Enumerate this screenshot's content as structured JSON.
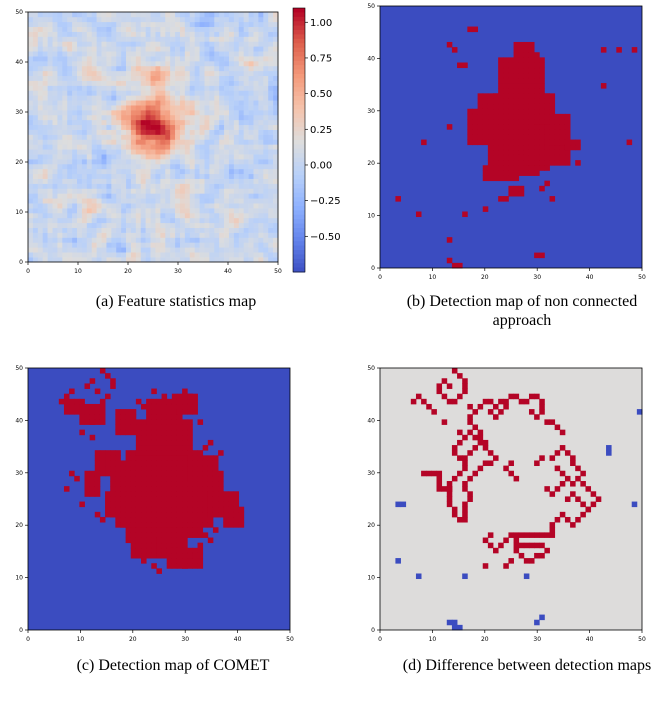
{
  "captions": {
    "a": "(a) Feature statistics map",
    "b": "(b) Detection map of non connected approach",
    "c": "(c) Detection map of COMET",
    "d": "(d) Difference between detection maps"
  },
  "chart_data": [
    {
      "id": "a",
      "type": "heatmap",
      "title": "",
      "xlim": [
        0,
        50
      ],
      "ylim": [
        0,
        50
      ],
      "xticks": [
        "0",
        "10",
        "20",
        "30",
        "40",
        "50"
      ],
      "yticks": [
        "0",
        "10",
        "20",
        "30",
        "40",
        "50"
      ],
      "colormap": "coolwarm",
      "colorbar": {
        "min": -0.75,
        "max": 1.1,
        "ticks": [
          "1.00",
          "0.75",
          "0.50",
          "0.25",
          "0.00",
          "−0.25",
          "−0.50"
        ],
        "tick_values": [
          1.0,
          0.75,
          0.5,
          0.25,
          0.0,
          -0.25,
          -0.5
        ]
      },
      "blob_center": [
        25,
        27
      ],
      "note_values": "noisy random field with a strong positive blob around (25,27)"
    },
    {
      "id": "b",
      "type": "heatmap",
      "xlim": [
        0,
        50
      ],
      "ylim": [
        0,
        50
      ],
      "xticks": [
        "0",
        "10",
        "20",
        "30",
        "40",
        "50"
      ],
      "yticks": [
        "0",
        "10",
        "20",
        "30",
        "40",
        "50"
      ],
      "background_color": "#3b4cc0",
      "detected_color": "#b40426",
      "detected_blocks": [
        [
          21,
          31,
          20,
          32
        ],
        [
          22,
          32,
          19,
          33
        ],
        [
          23,
          31,
          33,
          40
        ],
        [
          26,
          29,
          40,
          43
        ],
        [
          19,
          33,
          25,
          33
        ],
        [
          32,
          36,
          21,
          29
        ],
        [
          17,
          20,
          24,
          30
        ],
        [
          20,
          22,
          17,
          19
        ],
        [
          23,
          26,
          17,
          19
        ],
        [
          26,
          30,
          18,
          21
        ],
        [
          28,
          31,
          20,
          22
        ],
        [
          30,
          32,
          28,
          31
        ],
        [
          32,
          35,
          20,
          22
        ],
        [
          33,
          35,
          24,
          26
        ],
        [
          36,
          38,
          23,
          24
        ]
      ],
      "detected_points": [
        [
          13,
          43
        ],
        [
          14,
          42
        ],
        [
          15,
          39
        ],
        [
          16,
          39
        ],
        [
          17,
          46
        ],
        [
          18,
          46
        ],
        [
          30,
          41
        ],
        [
          43,
          42
        ],
        [
          46,
          42
        ],
        [
          8,
          24
        ],
        [
          13,
          27
        ],
        [
          36,
          20
        ],
        [
          38,
          20
        ],
        [
          43,
          35
        ],
        [
          49,
          42
        ],
        [
          48,
          24
        ],
        [
          31,
          15
        ],
        [
          32,
          16
        ],
        [
          25,
          14
        ],
        [
          26,
          14
        ],
        [
          27,
          14
        ],
        [
          25,
          15
        ],
        [
          26,
          15
        ],
        [
          27,
          15
        ],
        [
          23,
          13
        ],
        [
          24,
          13
        ],
        [
          33,
          13
        ],
        [
          16,
          10
        ],
        [
          13,
          5
        ],
        [
          3,
          13
        ],
        [
          7,
          10
        ],
        [
          20,
          11
        ],
        [
          30,
          2
        ],
        [
          31,
          2
        ],
        [
          13,
          1
        ],
        [
          14,
          0
        ],
        [
          15,
          0
        ]
      ]
    },
    {
      "id": "c",
      "type": "heatmap",
      "xlim": [
        0,
        50
      ],
      "ylim": [
        0,
        50
      ],
      "xticks": [
        "0",
        "10",
        "20",
        "30",
        "40",
        "50"
      ],
      "yticks": [
        "0",
        "10",
        "20",
        "30",
        "40",
        "50"
      ],
      "background_color": "#3b4cc0",
      "detected_color": "#b40426",
      "detected_blocks": [
        [
          19,
          33,
          18,
          34
        ],
        [
          17,
          35,
          20,
          32
        ],
        [
          16,
          37,
          22,
          30
        ],
        [
          21,
          31,
          34,
          40
        ],
        [
          23,
          29,
          40,
          44
        ],
        [
          13,
          17,
          30,
          34
        ],
        [
          11,
          13,
          26,
          30
        ],
        [
          35,
          40,
          22,
          26
        ],
        [
          38,
          41,
          20,
          23
        ],
        [
          20,
          25,
          14,
          18
        ],
        [
          25,
          30,
          14,
          17
        ],
        [
          27,
          33,
          12,
          15
        ],
        [
          15,
          19,
          22,
          26
        ],
        [
          31,
          36,
          29,
          33
        ],
        [
          28,
          32,
          42,
          45
        ],
        [
          17,
          20,
          38,
          42
        ],
        [
          10,
          14,
          40,
          43
        ],
        [
          7,
          9,
          42,
          44
        ]
      ],
      "detected_points": [
        [
          14,
          50
        ],
        [
          15,
          49
        ],
        [
          16,
          48
        ],
        [
          16,
          47
        ],
        [
          15,
          45
        ],
        [
          14,
          44
        ],
        [
          13,
          46
        ],
        [
          11,
          47
        ],
        [
          12,
          48
        ],
        [
          6,
          44
        ],
        [
          7,
          45
        ],
        [
          8,
          46
        ],
        [
          9,
          43
        ],
        [
          10,
          38
        ],
        [
          12,
          37
        ],
        [
          8,
          30
        ],
        [
          9,
          29
        ],
        [
          7,
          27
        ],
        [
          10,
          24
        ],
        [
          13,
          22
        ],
        [
          14,
          21
        ],
        [
          18,
          20
        ],
        [
          19,
          17
        ],
        [
          22,
          13
        ],
        [
          24,
          12
        ],
        [
          25,
          11
        ],
        [
          30,
          12
        ],
        [
          32,
          14
        ],
        [
          33,
          16
        ],
        [
          34,
          18
        ],
        [
          35,
          17
        ],
        [
          36,
          19
        ],
        [
          37,
          34
        ],
        [
          34,
          35
        ],
        [
          35,
          36
        ],
        [
          31,
          45
        ],
        [
          30,
          46
        ],
        [
          33,
          40
        ],
        [
          29,
          42
        ],
        [
          26,
          45
        ],
        [
          24,
          46
        ],
        [
          22,
          43
        ],
        [
          21,
          44
        ],
        [
          12,
          40
        ],
        [
          10,
          44
        ]
      ]
    },
    {
      "id": "d",
      "type": "heatmap",
      "xlim": [
        0,
        50
      ],
      "ylim": [
        0,
        50
      ],
      "xticks": [
        "0",
        "10",
        "20",
        "30",
        "40",
        "50"
      ],
      "yticks": [
        "0",
        "10",
        "20",
        "30",
        "40",
        "50"
      ],
      "background_color": "#dddcdb",
      "added_color": "#b40426",
      "removed_color": "#3b4cc0",
      "added_points": [
        [
          14,
          50
        ],
        [
          15,
          49
        ],
        [
          16,
          48
        ],
        [
          16,
          47
        ],
        [
          16,
          46
        ],
        [
          15,
          45
        ],
        [
          14,
          44
        ],
        [
          13,
          44
        ],
        [
          12,
          45
        ],
        [
          11,
          46
        ],
        [
          11,
          47
        ],
        [
          12,
          48
        ],
        [
          13,
          47
        ],
        [
          17,
          43
        ],
        [
          18,
          42
        ],
        [
          19,
          43
        ],
        [
          20,
          44
        ],
        [
          21,
          44
        ],
        [
          22,
          43
        ],
        [
          23,
          44
        ],
        [
          24,
          44
        ],
        [
          25,
          45
        ],
        [
          26,
          45
        ],
        [
          27,
          44
        ],
        [
          28,
          44
        ],
        [
          29,
          45
        ],
        [
          30,
          45
        ],
        [
          31,
          44
        ],
        [
          31,
          43
        ],
        [
          31,
          42
        ],
        [
          30,
          41
        ],
        [
          29,
          42
        ],
        [
          33,
          40
        ],
        [
          32,
          40
        ],
        [
          34,
          39
        ],
        [
          35,
          38
        ],
        [
          17,
          41
        ],
        [
          17,
          40
        ],
        [
          18,
          39
        ],
        [
          19,
          38
        ],
        [
          19,
          37
        ],
        [
          20,
          36
        ],
        [
          20,
          35
        ],
        [
          21,
          34
        ],
        [
          22,
          33
        ],
        [
          21,
          32
        ],
        [
          20,
          32
        ],
        [
          19,
          31
        ],
        [
          18,
          30
        ],
        [
          17,
          29
        ],
        [
          16,
          28
        ],
        [
          16,
          27
        ],
        [
          17,
          26
        ],
        [
          17,
          25
        ],
        [
          16,
          24
        ],
        [
          16,
          23
        ],
        [
          16,
          22
        ],
        [
          16,
          21
        ],
        [
          15,
          21
        ],
        [
          14,
          22
        ],
        [
          14,
          23
        ],
        [
          13,
          24
        ],
        [
          13,
          25
        ],
        [
          13,
          26
        ],
        [
          13,
          27
        ],
        [
          13,
          28
        ],
        [
          14,
          29
        ],
        [
          15,
          30
        ],
        [
          16,
          31
        ],
        [
          16,
          32
        ],
        [
          15,
          33
        ],
        [
          14,
          34
        ],
        [
          14,
          35
        ],
        [
          15,
          36
        ],
        [
          16,
          37
        ],
        [
          17,
          38
        ],
        [
          18,
          37
        ],
        [
          19,
          36
        ],
        [
          18,
          35
        ],
        [
          17,
          34
        ],
        [
          16,
          33
        ],
        [
          8,
          30
        ],
        [
          9,
          30
        ],
        [
          10,
          30
        ],
        [
          11,
          30
        ],
        [
          11,
          29
        ],
        [
          11,
          28
        ],
        [
          11,
          27
        ],
        [
          12,
          27
        ],
        [
          13,
          27
        ],
        [
          33,
          33
        ],
        [
          34,
          34
        ],
        [
          35,
          35
        ],
        [
          36,
          34
        ],
        [
          37,
          33
        ],
        [
          37,
          32
        ],
        [
          38,
          31
        ],
        [
          39,
          30
        ],
        [
          38,
          29
        ],
        [
          39,
          28
        ],
        [
          40,
          27
        ],
        [
          41,
          26
        ],
        [
          42,
          25
        ],
        [
          41,
          24
        ],
        [
          40,
          23
        ],
        [
          39,
          22
        ],
        [
          38,
          21
        ],
        [
          37,
          20
        ],
        [
          36,
          21
        ],
        [
          35,
          22
        ],
        [
          34,
          21
        ],
        [
          33,
          20
        ],
        [
          33,
          19
        ],
        [
          33,
          18
        ],
        [
          32,
          18
        ],
        [
          31,
          18
        ],
        [
          30,
          18
        ],
        [
          29,
          18
        ],
        [
          28,
          18
        ],
        [
          27,
          18
        ],
        [
          26,
          18
        ],
        [
          25,
          18
        ],
        [
          24,
          17
        ],
        [
          23,
          16
        ],
        [
          22,
          15
        ],
        [
          21,
          16
        ],
        [
          20,
          17
        ],
        [
          21,
          18
        ],
        [
          26,
          17
        ],
        [
          26,
          16
        ],
        [
          26,
          15
        ],
        [
          27,
          14
        ],
        [
          28,
          13
        ],
        [
          29,
          13
        ],
        [
          30,
          14
        ],
        [
          31,
          14
        ],
        [
          32,
          15
        ],
        [
          31,
          16
        ],
        [
          30,
          16
        ],
        [
          29,
          16
        ],
        [
          28,
          16
        ],
        [
          27,
          16
        ],
        [
          25,
          13
        ],
        [
          24,
          12
        ],
        [
          20,
          12
        ],
        [
          35,
          30
        ],
        [
          34,
          31
        ],
        [
          36,
          25
        ],
        [
          37,
          26
        ],
        [
          38,
          25
        ],
        [
          39,
          24
        ],
        [
          40,
          23
        ],
        [
          36,
          29
        ],
        [
          37,
          28
        ],
        [
          35,
          28
        ],
        [
          34,
          27
        ],
        [
          33,
          26
        ],
        [
          32,
          27
        ],
        [
          30,
          32
        ],
        [
          31,
          33
        ],
        [
          24,
          31
        ],
        [
          25,
          32
        ],
        [
          25,
          30
        ],
        [
          26,
          29
        ],
        [
          15,
          38
        ],
        [
          12,
          40
        ],
        [
          10,
          42
        ],
        [
          9,
          43
        ],
        [
          8,
          44
        ],
        [
          7,
          45
        ],
        [
          6,
          44
        ],
        [
          21,
          42
        ],
        [
          22,
          41
        ],
        [
          23,
          42
        ],
        [
          24,
          43
        ]
      ],
      "removed_points": [
        [
          3,
          13
        ],
        [
          7,
          10
        ],
        [
          16,
          10
        ],
        [
          28,
          10
        ],
        [
          14,
          1
        ],
        [
          13,
          1
        ],
        [
          14,
          0
        ],
        [
          15,
          0
        ],
        [
          30,
          1
        ],
        [
          31,
          2
        ],
        [
          44,
          35
        ],
        [
          44,
          34
        ],
        [
          49,
          24
        ],
        [
          50,
          42
        ],
        [
          4,
          24
        ],
        [
          3,
          24
        ]
      ]
    }
  ]
}
